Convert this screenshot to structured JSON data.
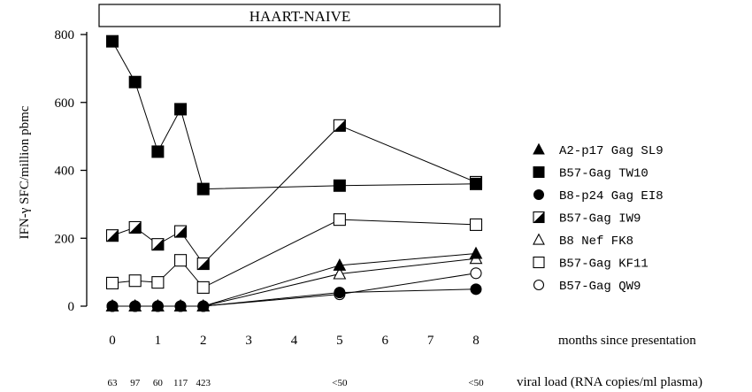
{
  "chart_data": {
    "type": "line",
    "title": "HAART-NAIVE",
    "ylabel": "IFN-γ SFC/million pbmc",
    "xlabel": "months since presentation",
    "ylim": [
      0,
      800
    ],
    "xlim": [
      0,
      8
    ],
    "y_ticks": [
      "0",
      "200",
      "400",
      "600",
      "800"
    ],
    "x_ticks": [
      "0",
      "1",
      "2",
      "3",
      "4",
      "5",
      "6",
      "7",
      "8"
    ],
    "secondary_xlabel": "viral load (RNA copies/ml plasma)",
    "viral_load": [
      {
        "x": 0,
        "label": "63"
      },
      {
        "x": 0.5,
        "label": "97"
      },
      {
        "x": 1,
        "label": "60"
      },
      {
        "x": 1.5,
        "label": "117"
      },
      {
        "x": 2,
        "label": "423"
      },
      {
        "x": 5,
        "label": "<50"
      },
      {
        "x": 8,
        "label": "<50"
      }
    ],
    "legend_position": "right",
    "series": [
      {
        "name": "A2-p17 Gag SL9",
        "marker": "triangle-filled",
        "points": [
          [
            0,
            0
          ],
          [
            0.5,
            0
          ],
          [
            1,
            0
          ],
          [
            1.5,
            0
          ],
          [
            2,
            0
          ],
          [
            5,
            120
          ],
          [
            8,
            155
          ]
        ]
      },
      {
        "name": "B57-Gag TW10",
        "marker": "square-filled",
        "points": [
          [
            0,
            780
          ],
          [
            0.5,
            660
          ],
          [
            1,
            455
          ],
          [
            1.5,
            580
          ],
          [
            2,
            345
          ],
          [
            5,
            355
          ],
          [
            8,
            360
          ]
        ]
      },
      {
        "name": "B8-p24 Gag EI8",
        "marker": "circle-filled",
        "points": [
          [
            0,
            0
          ],
          [
            0.5,
            0
          ],
          [
            1,
            0
          ],
          [
            1.5,
            0
          ],
          [
            2,
            0
          ],
          [
            5,
            40
          ],
          [
            8,
            50
          ]
        ]
      },
      {
        "name": "B57-Gag IW9",
        "marker": "square-half",
        "points": [
          [
            0,
            208
          ],
          [
            0.5,
            232
          ],
          [
            1,
            182
          ],
          [
            1.5,
            220
          ],
          [
            2,
            125
          ],
          [
            5,
            532
          ],
          [
            8,
            365
          ]
        ]
      },
      {
        "name": "B8 Nef FK8",
        "marker": "triangle-open",
        "points": [
          [
            0,
            0
          ],
          [
            0.5,
            0
          ],
          [
            1,
            0
          ],
          [
            1.5,
            0
          ],
          [
            2,
            0
          ],
          [
            5,
            95
          ],
          [
            8,
            140
          ]
        ]
      },
      {
        "name": "B57-Gag KF11",
        "marker": "square-open",
        "points": [
          [
            0,
            68
          ],
          [
            0.5,
            75
          ],
          [
            1,
            70
          ],
          [
            1.5,
            135
          ],
          [
            2,
            55
          ],
          [
            5,
            255
          ],
          [
            8,
            240
          ]
        ]
      },
      {
        "name": "B57-Gag QW9",
        "marker": "circle-open",
        "points": [
          [
            0,
            0
          ],
          [
            0.5,
            0
          ],
          [
            1,
            0
          ],
          [
            1.5,
            0
          ],
          [
            2,
            0
          ],
          [
            5,
            35
          ],
          [
            8,
            97
          ]
        ]
      }
    ]
  }
}
